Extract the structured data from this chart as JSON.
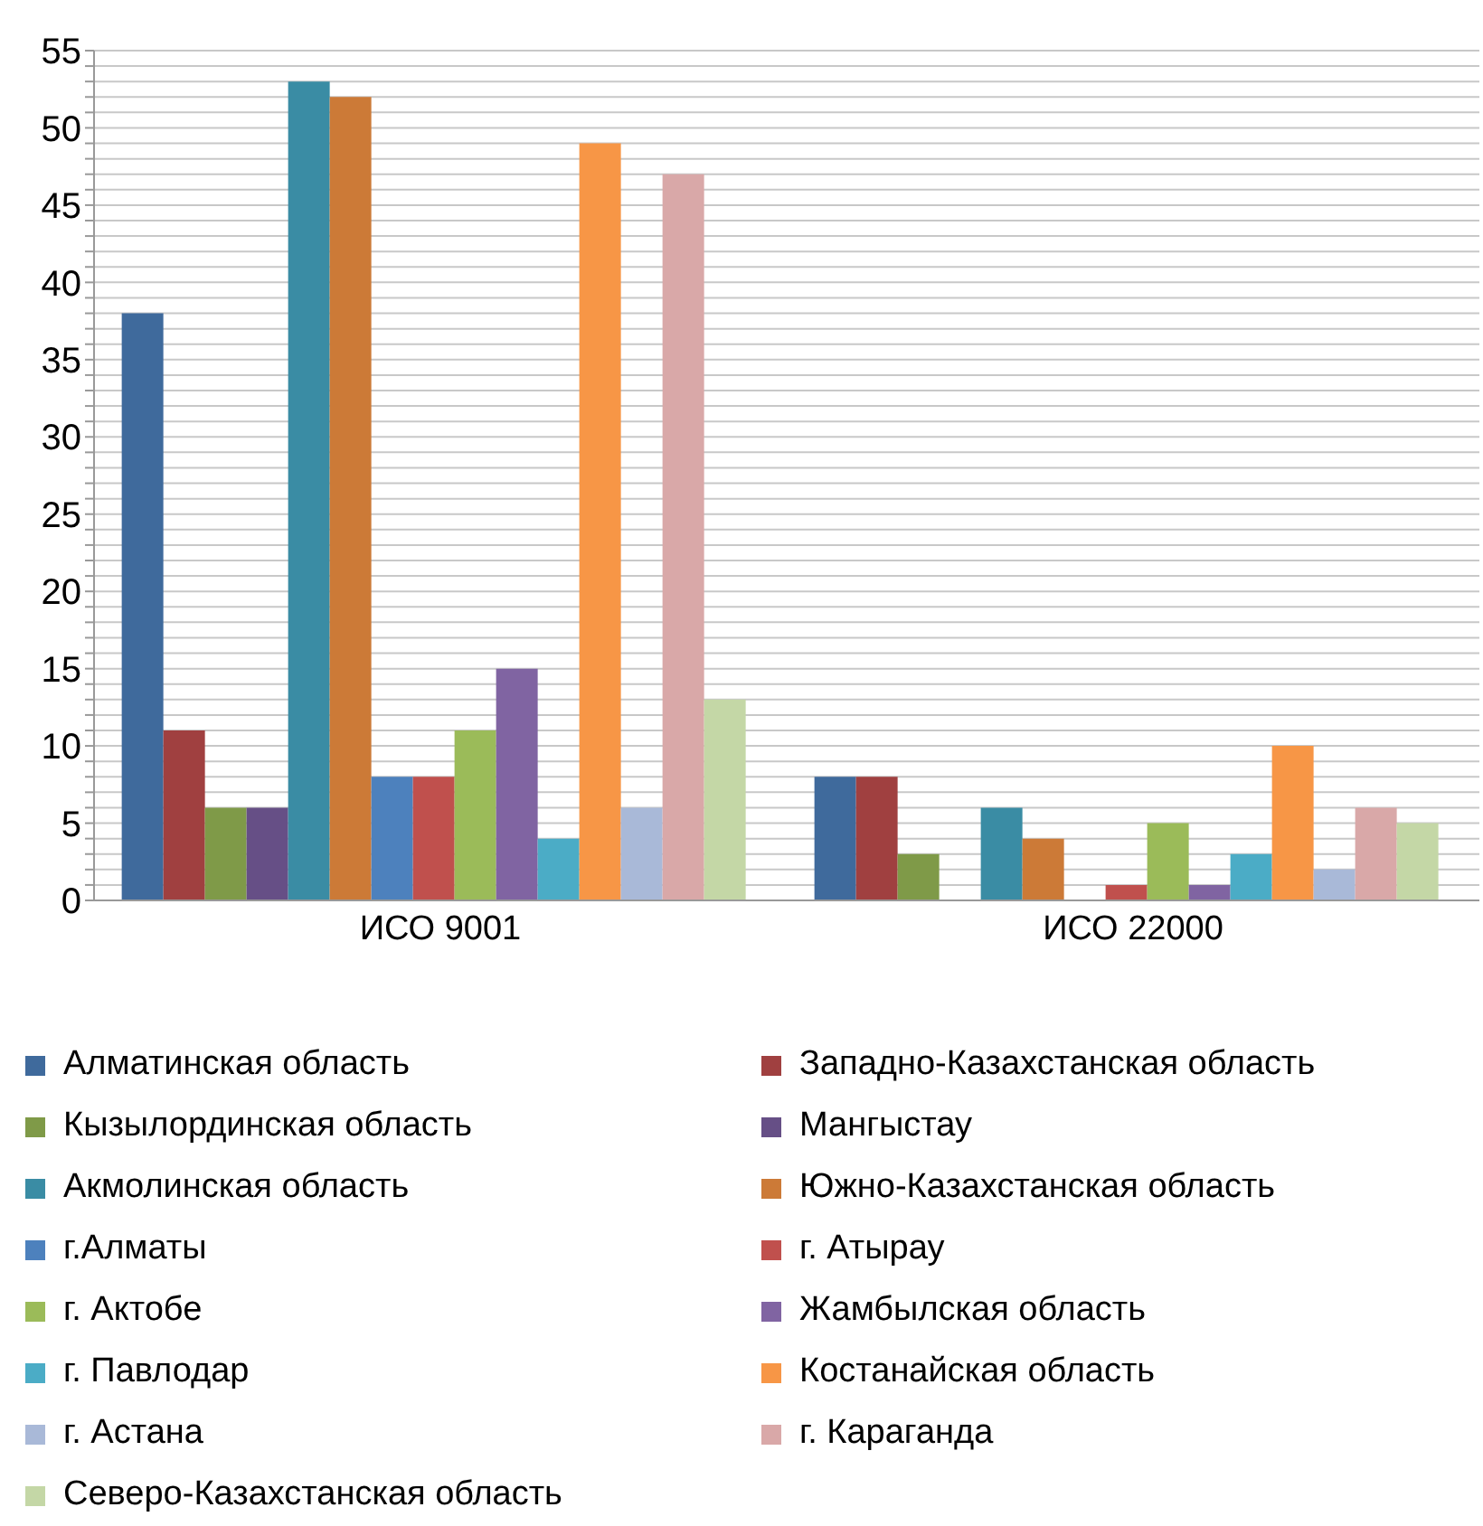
{
  "chart_data": {
    "type": "bar",
    "categories": [
      "ИСО 9001",
      "ИСО 22000"
    ],
    "series": [
      {
        "name": "Алматинская область",
        "color": "#3f6a9c",
        "values": [
          38,
          8
        ]
      },
      {
        "name": "Западно-Казахстанская область",
        "color": "#a04040",
        "values": [
          11,
          8
        ]
      },
      {
        "name": "Кызылординская область",
        "color": "#7f9a48",
        "values": [
          6,
          3
        ]
      },
      {
        "name": "Мангыстау",
        "color": "#664f86",
        "values": [
          6,
          0
        ]
      },
      {
        "name": "Акмолинская область",
        "color": "#3a8ca4",
        "values": [
          53,
          6
        ]
      },
      {
        "name": "Южно-Казахстанская область",
        "color": "#cc7a37",
        "values": [
          52,
          4
        ]
      },
      {
        "name": "г.Алматы",
        "color": "#4d81bd",
        "values": [
          8,
          0
        ]
      },
      {
        "name": "г. Атырау",
        "color": "#c0504d",
        "values": [
          8,
          1
        ]
      },
      {
        "name": "г. Актобе",
        "color": "#9bbb59",
        "values": [
          11,
          5
        ]
      },
      {
        "name": "Жамбылская область",
        "color": "#8064a2",
        "values": [
          15,
          1
        ]
      },
      {
        "name": "г. Павлодар",
        "color": "#4bacc6",
        "values": [
          4,
          3
        ]
      },
      {
        "name": "Костанайская область",
        "color": "#f79646",
        "values": [
          49,
          10
        ]
      },
      {
        "name": "г. Астана",
        "color": "#a9b9d8",
        "values": [
          6,
          2
        ]
      },
      {
        "name": "г. Караганда",
        "color": "#d9a8a8",
        "values": [
          47,
          6
        ]
      },
      {
        "name": "Северо-Казахстанская область",
        "color": "#c4d7a6",
        "values": [
          13,
          5
        ]
      }
    ],
    "ylim": [
      0,
      55
    ],
    "yticks": [
      0,
      {
        "value": 1,
        "label": null
      },
      {
        "value": 2,
        "label": null
      },
      {
        "value": 3,
        "label": null
      },
      {
        "value": 4,
        "label": null
      },
      5,
      {
        "value": 6,
        "label": null
      },
      {
        "value": 7,
        "label": null
      },
      {
        "value": 8,
        "label": null
      },
      {
        "value": 9,
        "label": null
      },
      10,
      {
        "value": 11,
        "label": null
      },
      {
        "value": 12,
        "label": null
      },
      {
        "value": 13,
        "label": null
      },
      {
        "value": 14,
        "label": null
      },
      15,
      {
        "value": 16,
        "label": null
      },
      {
        "value": 17,
        "label": null
      },
      {
        "value": 18,
        "label": null
      },
      {
        "value": 19,
        "label": null
      },
      20,
      {
        "value": 21,
        "label": null
      },
      {
        "value": 22,
        "label": null
      },
      {
        "value": 23,
        "label": null
      },
      {
        "value": 24,
        "label": null
      },
      25,
      {
        "value": 26,
        "label": null
      },
      {
        "value": 27,
        "label": null
      },
      {
        "value": 28,
        "label": null
      },
      {
        "value": 29,
        "label": null
      },
      30,
      {
        "value": 31,
        "label": null
      },
      {
        "value": 32,
        "label": null
      },
      {
        "value": 33,
        "label": null
      },
      {
        "value": 34,
        "label": null
      },
      35,
      {
        "value": 36,
        "label": null
      },
      {
        "value": 37,
        "label": null
      },
      {
        "value": 38,
        "label": null
      },
      {
        "value": 39,
        "label": null
      },
      40,
      {
        "value": 41,
        "label": null
      },
      {
        "value": 42,
        "label": null
      },
      {
        "value": 43,
        "label": null
      },
      {
        "value": 44,
        "label": null
      },
      45,
      {
        "value": 46,
        "label": null
      },
      {
        "value": 47,
        "label": null
      },
      {
        "value": 48,
        "label": null
      },
      {
        "value": 49,
        "label": null
      },
      50,
      {
        "value": 51,
        "label": null
      },
      {
        "value": 52,
        "label": null
      },
      {
        "value": 53,
        "label": null
      },
      {
        "value": 54,
        "label": null
      },
      55
    ],
    "grid": "y",
    "legend": "bottom"
  }
}
